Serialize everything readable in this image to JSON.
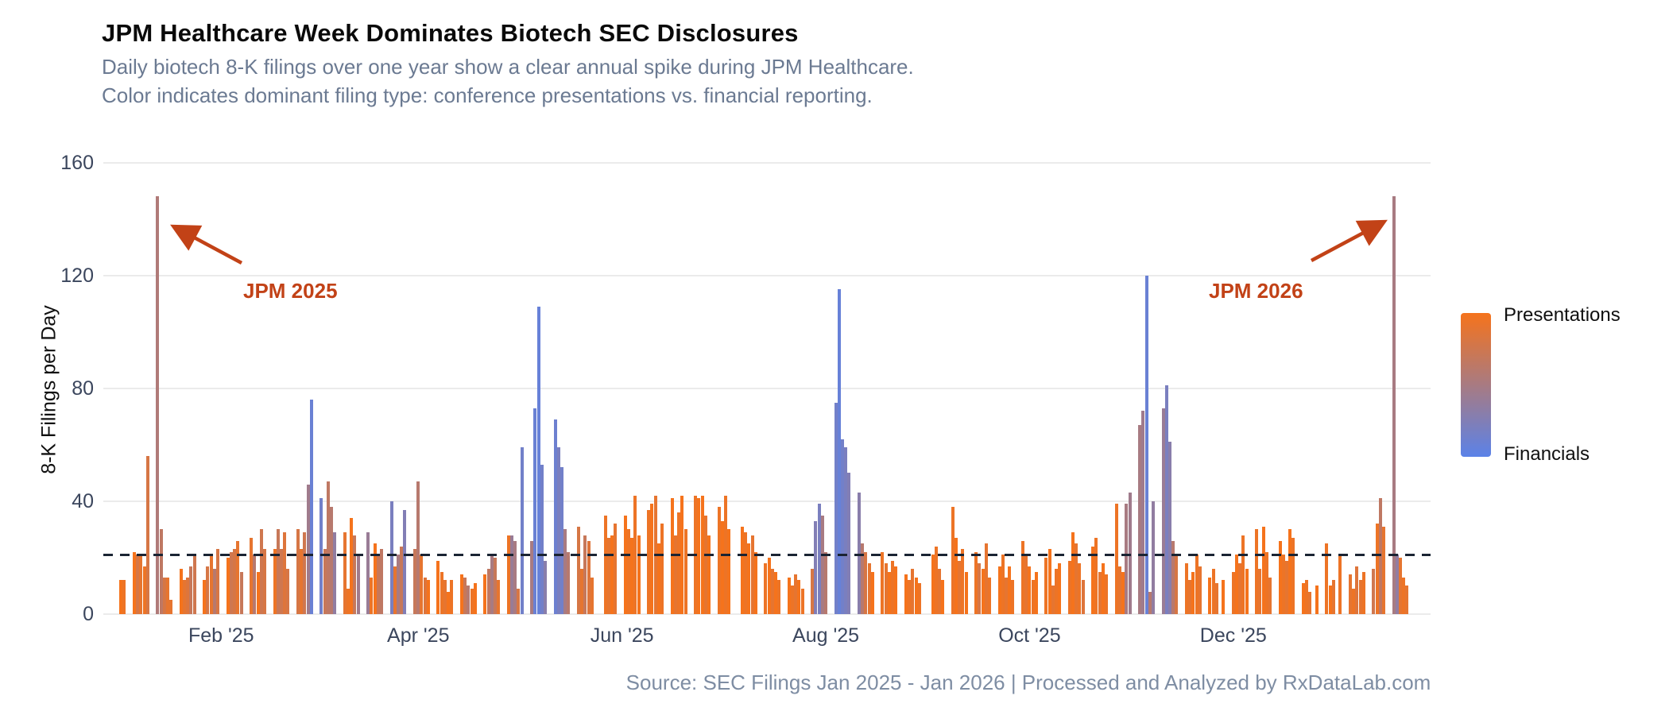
{
  "header": {
    "title": "JPM Healthcare Week Dominates Biotech SEC Disclosures",
    "subtitle_line1": "Daily biotech 8-K filings over one year show a clear annual spike during JPM Healthcare.",
    "subtitle_line2": "Color indicates dominant filing type: conference presentations vs. financial reporting."
  },
  "annotations": {
    "jpm2025": "JPM 2025",
    "jpm2026": "JPM 2026"
  },
  "legend": {
    "top_label": "Presentations",
    "bottom_label": "Financials"
  },
  "source_line": "Source: SEC Filings Jan 2025 - Jan 2026 | Processed and Analyzed by RxDataLab.com",
  "colors": {
    "presentations": "#f5731c",
    "financials": "#5b82e8",
    "annotation": "#c24217",
    "gridline": "#ebebeb",
    "reference_line": "#1b2433",
    "tick_text": "#3b465d",
    "subtitle_text": "#6b7a92",
    "source_text": "#7e8da3"
  },
  "chart_data": {
    "type": "bar",
    "title": "JPM Healthcare Week Dominates Biotech SEC Disclosures",
    "ylabel": "8-K Filings per Day",
    "ylim": [
      0,
      160
    ],
    "yticks": [
      0,
      40,
      80,
      120,
      160
    ],
    "grid": "horizontal only",
    "legend_position": "right colorbar, Presentations (orange) top to Financials (blue) bottom",
    "x_axis_start_date": "2025-01-01",
    "x_days_span": 393,
    "month_ticks": [
      {
        "label": "Feb '25",
        "day": 31
      },
      {
        "label": "Apr '25",
        "day": 90
      },
      {
        "label": "Jun '25",
        "day": 151
      },
      {
        "label": "Aug '25",
        "day": 212
      },
      {
        "label": "Oct '25",
        "day": 273
      },
      {
        "label": "Dec '25",
        "day": 334
      }
    ],
    "reference_line": {
      "value": 21,
      "style": "dashed"
    },
    "annotated_peaks": [
      {
        "label": "JPM 2025",
        "day": 12,
        "value": 148
      },
      {
        "label": "JPM 2026",
        "day": 382,
        "value": 148
      }
    ],
    "bars_format": [
      "day_offset_from_2025-01-01",
      "filings_count",
      "presentation_share_1_orange_to_0_blue"
    ],
    "bars": [
      [
        1,
        12,
        1
      ],
      [
        2,
        12,
        0.95
      ],
      [
        5,
        22,
        1
      ],
      [
        6,
        21,
        0.8
      ],
      [
        7,
        21,
        0.9
      ],
      [
        8,
        17,
        0.95
      ],
      [
        9,
        56,
        0.8
      ],
      [
        12,
        148,
        0.55
      ],
      [
        13,
        30,
        0.65
      ],
      [
        14,
        13,
        0.8
      ],
      [
        15,
        13,
        0.9
      ],
      [
        16,
        5,
        0.9
      ],
      [
        19,
        16,
        1
      ],
      [
        20,
        12,
        0.9
      ],
      [
        21,
        13,
        0.85
      ],
      [
        22,
        17,
        0.7
      ],
      [
        23,
        21,
        0.75
      ],
      [
        26,
        12,
        1
      ],
      [
        27,
        17,
        0.8
      ],
      [
        28,
        21,
        0.9
      ],
      [
        29,
        16,
        0.6
      ],
      [
        30,
        23,
        0.8
      ],
      [
        33,
        20,
        1
      ],
      [
        34,
        22,
        0.75
      ],
      [
        35,
        23,
        0.8
      ],
      [
        36,
        26,
        0.9
      ],
      [
        37,
        15,
        0.7
      ],
      [
        40,
        27,
        0.9
      ],
      [
        41,
        21,
        0.6
      ],
      [
        42,
        15,
        1
      ],
      [
        43,
        30,
        0.75
      ],
      [
        44,
        23,
        0.8
      ],
      [
        47,
        23,
        0.95
      ],
      [
        48,
        30,
        0.7
      ],
      [
        49,
        23,
        0.75
      ],
      [
        50,
        29,
        0.85
      ],
      [
        51,
        16,
        0.8
      ],
      [
        54,
        30,
        0.8
      ],
      [
        55,
        23,
        0.9
      ],
      [
        56,
        29,
        0.75
      ],
      [
        57,
        46,
        0.45
      ],
      [
        58,
        76,
        0.1
      ],
      [
        61,
        41,
        0.15
      ],
      [
        62,
        23,
        0.7
      ],
      [
        63,
        47,
        0.65
      ],
      [
        64,
        38,
        0.6
      ],
      [
        65,
        29,
        0.35
      ],
      [
        68,
        29,
        0.9
      ],
      [
        69,
        9,
        0.95
      ],
      [
        70,
        34,
        1
      ],
      [
        71,
        28,
        0.7
      ],
      [
        72,
        21,
        0.45
      ],
      [
        75,
        29,
        0.4
      ],
      [
        76,
        13,
        0.95
      ],
      [
        77,
        25,
        1
      ],
      [
        78,
        21,
        0.7
      ],
      [
        79,
        23,
        0.65
      ],
      [
        82,
        40,
        0.2
      ],
      [
        83,
        17,
        0.9
      ],
      [
        84,
        21,
        0.5
      ],
      [
        85,
        24,
        0.7
      ],
      [
        86,
        37,
        0.25
      ],
      [
        89,
        23,
        0.7
      ],
      [
        90,
        47,
        0.6
      ],
      [
        91,
        21,
        0.9
      ],
      [
        92,
        13,
        0.85
      ],
      [
        93,
        12,
        1
      ],
      [
        96,
        19,
        1
      ],
      [
        97,
        15,
        0.95
      ],
      [
        98,
        12,
        0.9
      ],
      [
        99,
        8,
        1
      ],
      [
        100,
        12,
        0.95
      ],
      [
        103,
        14,
        1
      ],
      [
        104,
        13,
        0.7
      ],
      [
        105,
        10,
        0.6
      ],
      [
        106,
        9,
        0.95
      ],
      [
        107,
        11,
        1
      ],
      [
        110,
        14,
        1
      ],
      [
        111,
        16,
        0.65
      ],
      [
        112,
        21,
        0.5
      ],
      [
        113,
        20,
        0.7
      ],
      [
        114,
        12,
        0.9
      ],
      [
        117,
        28,
        0.95
      ],
      [
        118,
        28,
        0.4
      ],
      [
        119,
        26,
        0.5
      ],
      [
        120,
        9,
        0.8
      ],
      [
        121,
        59,
        0.15
      ],
      [
        124,
        26,
        0.5
      ],
      [
        125,
        73,
        0.1
      ],
      [
        126,
        109,
        0.08
      ],
      [
        127,
        53,
        0.15
      ],
      [
        128,
        19,
        0.3
      ],
      [
        131,
        69,
        0.12
      ],
      [
        132,
        59,
        0.2
      ],
      [
        133,
        52,
        0.15
      ],
      [
        134,
        30,
        0.5
      ],
      [
        135,
        22,
        0.6
      ],
      [
        138,
        31,
        0.8
      ],
      [
        139,
        16,
        0.9
      ],
      [
        140,
        28,
        0.7
      ],
      [
        141,
        26,
        0.85
      ],
      [
        142,
        13,
        0.9
      ],
      [
        146,
        35,
        0.95
      ],
      [
        147,
        27,
        0.9
      ],
      [
        148,
        28,
        1
      ],
      [
        149,
        32,
        0.9
      ],
      [
        152,
        35,
        1
      ],
      [
        153,
        30,
        0.95
      ],
      [
        154,
        27,
        1
      ],
      [
        155,
        42,
        0.95
      ],
      [
        156,
        28,
        1
      ],
      [
        159,
        37,
        0.95
      ],
      [
        160,
        39,
        1
      ],
      [
        161,
        42,
        0.9
      ],
      [
        162,
        25,
        1
      ],
      [
        163,
        32,
        0.95
      ],
      [
        166,
        41,
        1
      ],
      [
        167,
        28,
        0.9
      ],
      [
        168,
        36,
        0.95
      ],
      [
        169,
        42,
        1
      ],
      [
        170,
        30,
        0.95
      ],
      [
        173,
        42,
        0.95
      ],
      [
        174,
        41,
        1
      ],
      [
        175,
        42,
        1
      ],
      [
        176,
        35,
        0.9
      ],
      [
        177,
        28,
        1
      ],
      [
        180,
        38,
        0.95
      ],
      [
        181,
        33,
        1
      ],
      [
        182,
        42,
        0.95
      ],
      [
        183,
        30,
        1
      ],
      [
        187,
        31,
        1
      ],
      [
        188,
        29,
        0.95
      ],
      [
        189,
        25,
        1
      ],
      [
        190,
        28,
        0.9
      ],
      [
        191,
        22,
        1
      ],
      [
        194,
        18,
        0.95
      ],
      [
        195,
        20,
        1
      ],
      [
        196,
        16,
        0.9
      ],
      [
        197,
        15,
        1
      ],
      [
        198,
        12,
        0.95
      ],
      [
        201,
        13,
        1
      ],
      [
        202,
        10,
        0.95
      ],
      [
        203,
        14,
        0.9
      ],
      [
        204,
        12,
        1
      ],
      [
        205,
        9,
        0.95
      ],
      [
        208,
        16,
        0.8
      ],
      [
        209,
        33,
        0.25
      ],
      [
        210,
        39,
        0.2
      ],
      [
        211,
        35,
        0.5
      ],
      [
        212,
        22,
        0.6
      ],
      [
        215,
        75,
        0.15
      ],
      [
        216,
        115,
        0.08
      ],
      [
        217,
        62,
        0.15
      ],
      [
        218,
        59,
        0.2
      ],
      [
        219,
        50,
        0.25
      ],
      [
        222,
        43,
        0.3
      ],
      [
        223,
        25,
        0.6
      ],
      [
        224,
        22,
        0.8
      ],
      [
        225,
        18,
        0.9
      ],
      [
        226,
        15,
        1
      ],
      [
        229,
        22,
        0.95
      ],
      [
        230,
        18,
        0.9
      ],
      [
        231,
        15,
        1
      ],
      [
        232,
        19,
        0.95
      ],
      [
        233,
        17,
        1
      ],
      [
        236,
        14,
        1
      ],
      [
        237,
        12,
        0.95
      ],
      [
        238,
        16,
        0.9
      ],
      [
        239,
        13,
        1
      ],
      [
        240,
        11,
        0.95
      ],
      [
        244,
        21,
        1
      ],
      [
        245,
        24,
        0.95
      ],
      [
        246,
        16,
        0.9
      ],
      [
        247,
        12,
        1
      ],
      [
        250,
        38,
        0.95
      ],
      [
        251,
        27,
        1
      ],
      [
        252,
        19,
        0.9
      ],
      [
        253,
        23,
        0.95
      ],
      [
        254,
        15,
        1
      ],
      [
        257,
        22,
        0.95
      ],
      [
        258,
        18,
        0.8
      ],
      [
        259,
        16,
        1
      ],
      [
        260,
        25,
        0.9
      ],
      [
        261,
        13,
        0.95
      ],
      [
        264,
        17,
        1
      ],
      [
        265,
        21,
        0.95
      ],
      [
        266,
        13,
        0.9
      ],
      [
        267,
        17,
        1
      ],
      [
        268,
        12,
        0.95
      ],
      [
        271,
        26,
        0.95
      ],
      [
        272,
        21,
        0.9
      ],
      [
        273,
        17,
        1
      ],
      [
        274,
        12,
        0.95
      ],
      [
        275,
        15,
        1
      ],
      [
        278,
        20,
        0.95
      ],
      [
        279,
        23,
        1
      ],
      [
        280,
        10,
        0.9
      ],
      [
        281,
        16,
        0.95
      ],
      [
        282,
        18,
        1
      ],
      [
        285,
        19,
        0.95
      ],
      [
        286,
        29,
        1
      ],
      [
        287,
        25,
        0.9
      ],
      [
        288,
        18,
        0.95
      ],
      [
        289,
        12,
        0.85
      ],
      [
        292,
        24,
        1
      ],
      [
        293,
        27,
        0.95
      ],
      [
        294,
        15,
        0.9
      ],
      [
        295,
        18,
        1
      ],
      [
        296,
        14,
        0.95
      ],
      [
        299,
        39,
        0.95
      ],
      [
        300,
        17,
        0.9
      ],
      [
        301,
        15,
        1
      ],
      [
        302,
        39,
        0.5
      ],
      [
        303,
        43,
        0.45
      ],
      [
        306,
        67,
        0.5
      ],
      [
        307,
        72,
        0.45
      ],
      [
        308,
        120,
        0.1
      ],
      [
        309,
        8,
        0.6
      ],
      [
        310,
        40,
        0.35
      ],
      [
        313,
        73,
        0.4
      ],
      [
        314,
        81,
        0.2
      ],
      [
        315,
        61,
        0.3
      ],
      [
        316,
        26,
        0.6
      ],
      [
        317,
        21,
        0.8
      ],
      [
        320,
        18,
        0.95
      ],
      [
        321,
        12,
        0.9
      ],
      [
        322,
        15,
        1
      ],
      [
        323,
        21,
        0.95
      ],
      [
        324,
        17,
        0.9
      ],
      [
        327,
        13,
        1
      ],
      [
        328,
        16,
        0.95
      ],
      [
        329,
        11,
        0.9
      ],
      [
        331,
        12,
        1
      ],
      [
        334,
        15,
        0.95
      ],
      [
        335,
        21,
        1
      ],
      [
        336,
        18,
        0.9
      ],
      [
        337,
        28,
        0.95
      ],
      [
        338,
        16,
        1
      ],
      [
        341,
        30,
        0.95
      ],
      [
        342,
        16,
        0.9
      ],
      [
        343,
        31,
        1
      ],
      [
        344,
        22,
        0.95
      ],
      [
        345,
        13,
        0.9
      ],
      [
        348,
        26,
        1
      ],
      [
        349,
        21,
        0.95
      ],
      [
        350,
        19,
        0.9
      ],
      [
        351,
        30,
        1
      ],
      [
        352,
        27,
        0.95
      ],
      [
        355,
        11,
        1
      ],
      [
        356,
        12,
        0.95
      ],
      [
        357,
        8,
        0.9
      ],
      [
        359,
        10,
        1
      ],
      [
        362,
        25,
        0.95
      ],
      [
        363,
        10,
        1
      ],
      [
        364,
        12,
        0.9
      ],
      [
        366,
        21,
        0.95
      ],
      [
        369,
        14,
        0.9
      ],
      [
        370,
        9,
        0.95
      ],
      [
        371,
        17,
        0.85
      ],
      [
        372,
        12,
        0.9
      ],
      [
        373,
        15,
        0.95
      ],
      [
        376,
        16,
        0.75
      ],
      [
        377,
        32,
        0.95
      ],
      [
        378,
        41,
        0.65
      ],
      [
        379,
        31,
        0.9
      ],
      [
        382,
        148,
        0.5
      ],
      [
        383,
        21,
        0.35
      ],
      [
        384,
        20,
        0.9
      ],
      [
        385,
        13,
        0.95
      ],
      [
        386,
        10,
        0.9
      ]
    ]
  }
}
